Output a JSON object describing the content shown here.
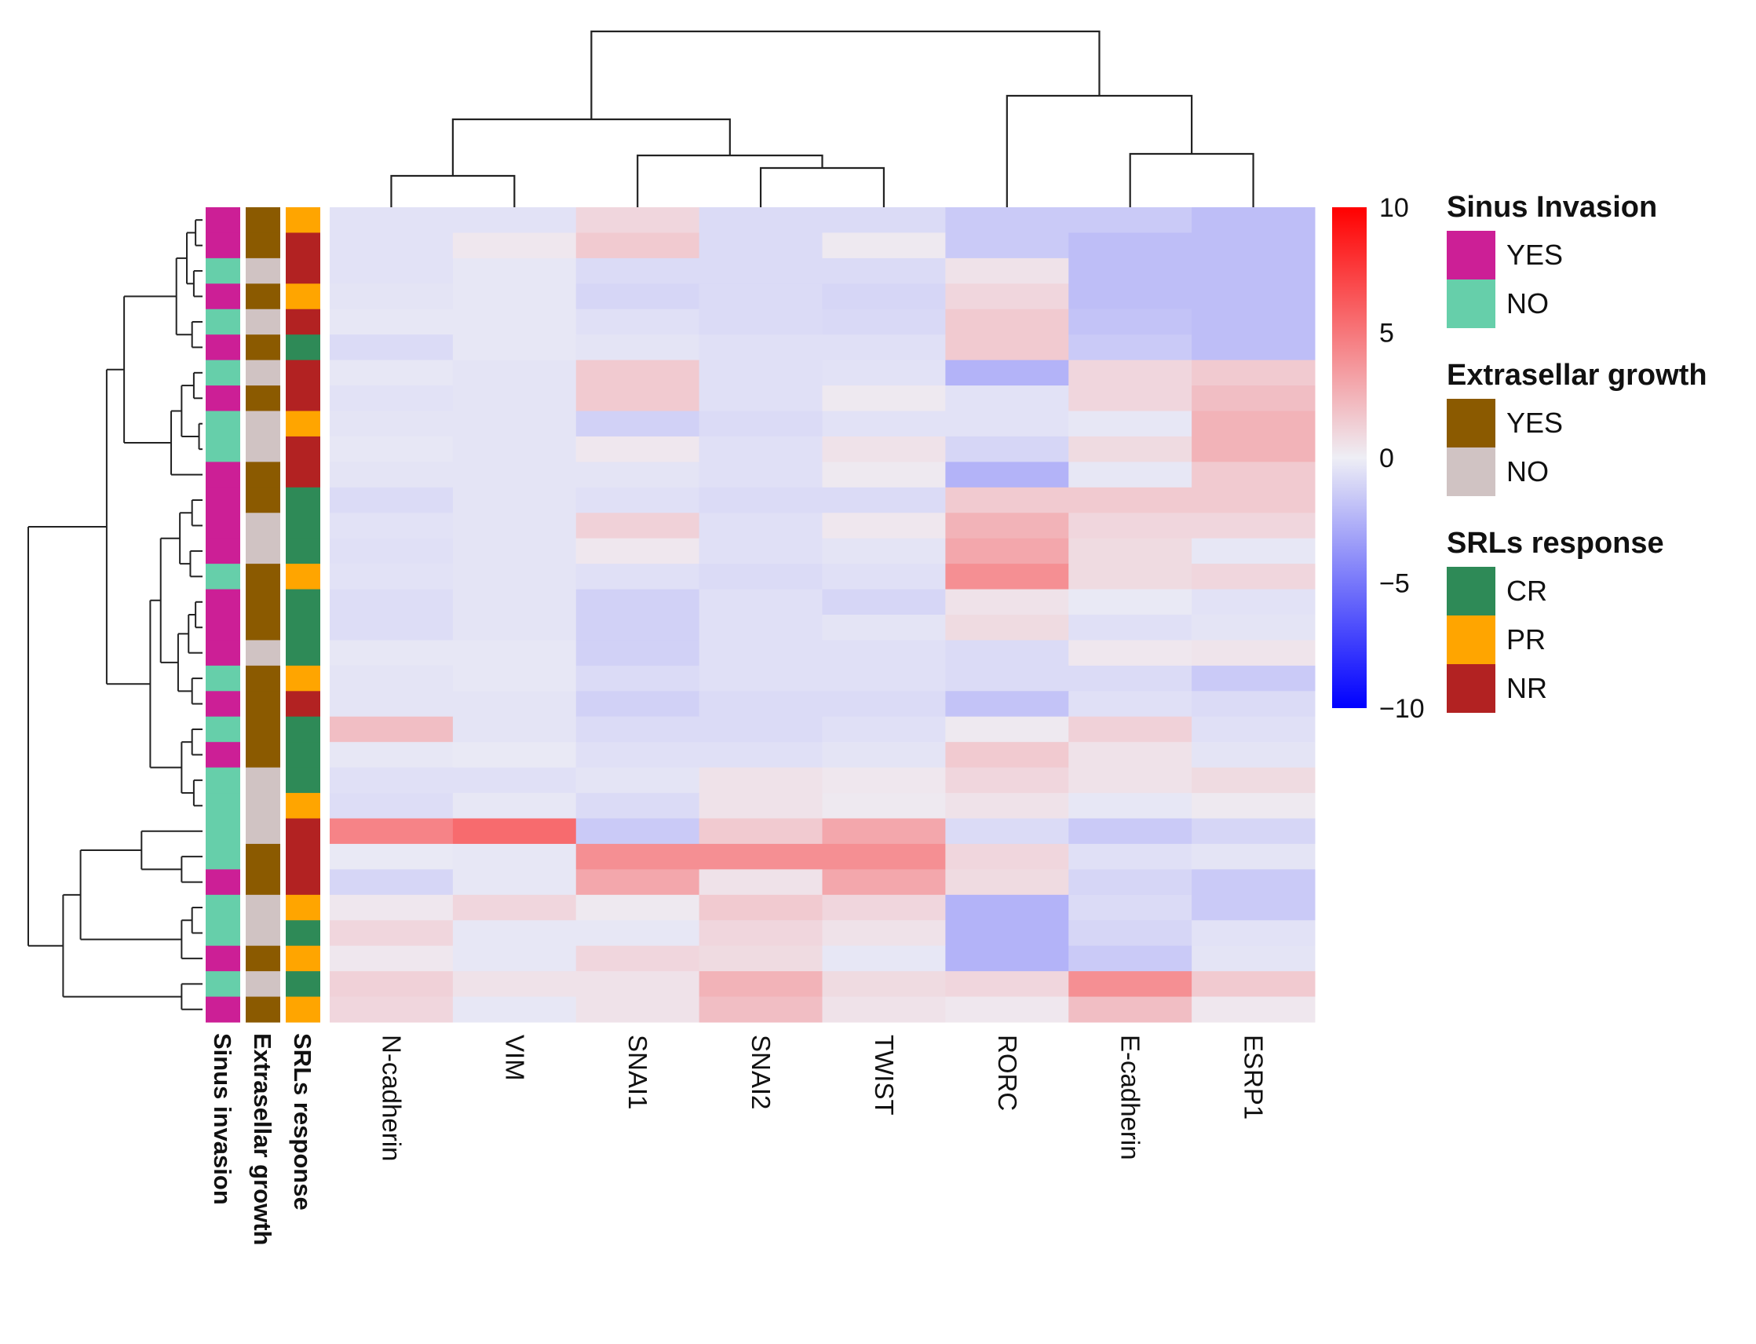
{
  "chart_data": {
    "type": "heatmap",
    "title": "",
    "columns": [
      "N-cadherin",
      "VIM",
      "SNAI1",
      "SNAI2",
      "TWIST",
      "RORC",
      "E-cadherin",
      "ESRP1"
    ],
    "annotation_tracks": [
      "Sinus invasion",
      "Extrasellar growth",
      "SRLs response"
    ],
    "rows": [
      {
        "sinus": "YES",
        "extra": "YES",
        "srl": "PR",
        "values": [
          -0.5,
          -0.5,
          1.0,
          -0.8,
          -0.8,
          -1.5,
          -1.5,
          -2.0
        ]
      },
      {
        "sinus": "YES",
        "extra": "YES",
        "srl": "NR",
        "values": [
          -0.5,
          0.3,
          1.5,
          -0.8,
          0.2,
          -1.5,
          -2.0,
          -2.0
        ]
      },
      {
        "sinus": "NO",
        "extra": "NO",
        "srl": "NR",
        "values": [
          -0.5,
          -0.3,
          -0.8,
          -0.8,
          -0.8,
          0.5,
          -2.0,
          -2.0
        ]
      },
      {
        "sinus": "YES",
        "extra": "YES",
        "srl": "PR",
        "values": [
          -0.4,
          -0.3,
          -1.0,
          -0.8,
          -1.0,
          1.0,
          -2.0,
          -2.0
        ]
      },
      {
        "sinus": "NO",
        "extra": "NO",
        "srl": "NR",
        "values": [
          -0.3,
          -0.3,
          -0.6,
          -0.8,
          -0.9,
          1.5,
          -1.8,
          -2.0
        ]
      },
      {
        "sinus": "YES",
        "extra": "YES",
        "srl": "CR",
        "values": [
          -0.8,
          -0.3,
          -0.4,
          -0.6,
          -0.6,
          1.5,
          -1.5,
          -2.0
        ]
      },
      {
        "sinus": "NO",
        "extra": "NO",
        "srl": "NR",
        "values": [
          -0.3,
          -0.4,
          1.5,
          -0.6,
          -0.5,
          -2.5,
          1.0,
          1.5
        ]
      },
      {
        "sinus": "YES",
        "extra": "YES",
        "srl": "NR",
        "values": [
          -0.5,
          -0.4,
          1.5,
          -0.6,
          0.2,
          -0.5,
          1.0,
          2.0
        ]
      },
      {
        "sinus": "NO",
        "extra": "NO",
        "srl": "PR",
        "values": [
          -0.4,
          -0.4,
          -1.2,
          -0.8,
          -0.5,
          -0.5,
          -0.3,
          2.5
        ]
      },
      {
        "sinus": "NO",
        "extra": "NO",
        "srl": "NR",
        "values": [
          -0.3,
          -0.4,
          0.3,
          -0.6,
          0.5,
          -1.0,
          0.8,
          2.5
        ]
      },
      {
        "sinus": "YES",
        "extra": "YES",
        "srl": "NR",
        "values": [
          -0.4,
          -0.4,
          -0.4,
          -0.6,
          0.2,
          -2.5,
          -0.3,
          1.5
        ]
      },
      {
        "sinus": "YES",
        "extra": "YES",
        "srl": "CR",
        "values": [
          -0.8,
          -0.4,
          -0.6,
          -0.8,
          -0.8,
          1.5,
          1.5,
          1.5
        ]
      },
      {
        "sinus": "YES",
        "extra": "NO",
        "srl": "CR",
        "values": [
          -0.5,
          -0.4,
          1.2,
          -0.6,
          0.3,
          2.5,
          1.0,
          1.0
        ]
      },
      {
        "sinus": "YES",
        "extra": "NO",
        "srl": "CR",
        "values": [
          -0.6,
          -0.4,
          0.3,
          -0.6,
          -0.4,
          3.0,
          0.8,
          -0.3
        ]
      },
      {
        "sinus": "NO",
        "extra": "YES",
        "srl": "PR",
        "values": [
          -0.5,
          -0.4,
          -0.6,
          -0.8,
          -0.6,
          4.0,
          0.8,
          1.0
        ]
      },
      {
        "sinus": "YES",
        "extra": "YES",
        "srl": "CR",
        "values": [
          -0.7,
          -0.4,
          -1.2,
          -0.6,
          -1.0,
          0.5,
          -0.2,
          -0.5
        ]
      },
      {
        "sinus": "YES",
        "extra": "YES",
        "srl": "CR",
        "values": [
          -0.7,
          -0.4,
          -1.2,
          -0.6,
          -0.4,
          0.8,
          -0.6,
          -0.4
        ]
      },
      {
        "sinus": "YES",
        "extra": "NO",
        "srl": "CR",
        "values": [
          -0.3,
          -0.3,
          -1.2,
          -0.6,
          -0.6,
          -0.8,
          0.3,
          0.4
        ]
      },
      {
        "sinus": "NO",
        "extra": "YES",
        "srl": "PR",
        "values": [
          -0.4,
          -0.3,
          -0.8,
          -0.6,
          -0.6,
          -0.8,
          -0.8,
          -1.5
        ]
      },
      {
        "sinus": "YES",
        "extra": "YES",
        "srl": "NR",
        "values": [
          -0.4,
          -0.4,
          -1.2,
          -0.8,
          -0.8,
          -1.8,
          -0.6,
          -0.8
        ]
      },
      {
        "sinus": "NO",
        "extra": "YES",
        "srl": "CR",
        "values": [
          2.0,
          -0.4,
          -0.8,
          -0.8,
          -0.6,
          0.2,
          1.2,
          -0.6
        ]
      },
      {
        "sinus": "YES",
        "extra": "YES",
        "srl": "CR",
        "values": [
          -0.3,
          -0.2,
          -0.6,
          -0.6,
          -0.4,
          1.5,
          0.5,
          -0.4
        ]
      },
      {
        "sinus": "NO",
        "extra": "NO",
        "srl": "CR",
        "values": [
          -0.6,
          -0.6,
          -0.4,
          0.5,
          0.3,
          1.0,
          0.5,
          0.8
        ]
      },
      {
        "sinus": "NO",
        "extra": "NO",
        "srl": "PR",
        "values": [
          -0.7,
          -0.3,
          -0.8,
          0.5,
          0.2,
          0.5,
          -0.3,
          0.2
        ]
      },
      {
        "sinus": "NO",
        "extra": "NO",
        "srl": "NR",
        "values": [
          4.5,
          5.5,
          -1.5,
          1.5,
          3.0,
          -0.8,
          -1.5,
          -1.0
        ]
      },
      {
        "sinus": "NO",
        "extra": "YES",
        "srl": "NR",
        "values": [
          -0.2,
          -0.3,
          4.0,
          4.0,
          4.0,
          1.0,
          -0.6,
          -0.4
        ]
      },
      {
        "sinus": "YES",
        "extra": "YES",
        "srl": "NR",
        "values": [
          -1.0,
          -0.3,
          3.0,
          0.5,
          3.0,
          0.8,
          -1.0,
          -1.5
        ]
      },
      {
        "sinus": "NO",
        "extra": "NO",
        "srl": "PR",
        "values": [
          0.3,
          1.0,
          0.2,
          1.5,
          1.0,
          -2.5,
          -0.8,
          -1.5
        ]
      },
      {
        "sinus": "NO",
        "extra": "NO",
        "srl": "CR",
        "values": [
          1.0,
          -0.3,
          -0.3,
          1.0,
          0.5,
          -2.5,
          -1.0,
          -0.5
        ]
      },
      {
        "sinus": "YES",
        "extra": "YES",
        "srl": "PR",
        "values": [
          0.3,
          -0.3,
          1.0,
          0.8,
          -0.3,
          -2.5,
          -1.5,
          -0.4
        ]
      },
      {
        "sinus": "NO",
        "extra": "NO",
        "srl": "CR",
        "values": [
          1.2,
          0.5,
          0.5,
          2.5,
          0.8,
          1.0,
          4.0,
          1.5
        ]
      },
      {
        "sinus": "YES",
        "extra": "YES",
        "srl": "PR",
        "values": [
          1.0,
          -0.3,
          0.5,
          2.0,
          0.5,
          0.3,
          2.0,
          0.3
        ]
      }
    ],
    "color_scale": {
      "min": -10,
      "mid": 0,
      "max": 10,
      "ticks": [
        10,
        5,
        0,
        -5,
        -10
      ],
      "colors": [
        "#0000ff",
        "#eeeef5",
        "#ff0000"
      ]
    },
    "annotation_colors": {
      "sinus": {
        "YES": "#cc1f96",
        "NO": "#66cfaa"
      },
      "extra": {
        "YES": "#8b5a00",
        "NO": "#d0c3c3"
      },
      "srl": {
        "CR": "#2e8a57",
        "PR": "#ffa500",
        "NR": "#b22222"
      }
    },
    "legends": [
      {
        "key": "sinus",
        "title": "Sinus Invasion",
        "entries": [
          "YES",
          "NO"
        ]
      },
      {
        "key": "extra",
        "title": "Extrasellar growth",
        "entries": [
          "YES",
          "NO"
        ]
      },
      {
        "key": "srl",
        "title": "SRLs response",
        "entries": [
          "CR",
          "PR",
          "NR"
        ]
      }
    ]
  }
}
